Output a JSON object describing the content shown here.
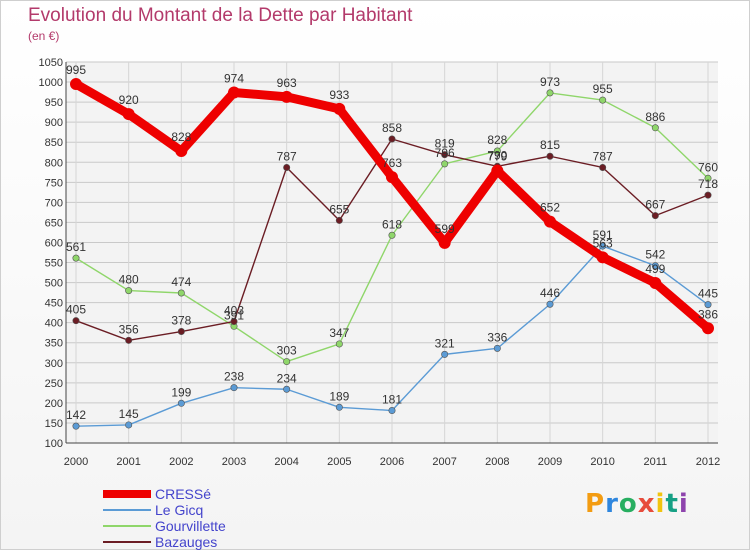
{
  "title": "Evolution du Montant de la Dette par Habitant",
  "subtitle": "(en €)",
  "logo": "Proxiti",
  "chart_data": {
    "type": "line",
    "x": [
      "2000",
      "2001",
      "2002",
      "2003",
      "2004",
      "2005",
      "2006",
      "2007",
      "2008",
      "2009",
      "2010",
      "2011",
      "2012"
    ],
    "ylim": [
      100,
      1050
    ],
    "yticks": [
      100,
      150,
      200,
      250,
      300,
      350,
      400,
      450,
      500,
      550,
      600,
      650,
      700,
      750,
      800,
      850,
      900,
      950,
      1000,
      1050
    ],
    "grid": true,
    "legend_position": "bottom-left",
    "series": [
      {
        "name": "CRESSé",
        "color": "#ee0000",
        "values": [
          995,
          920,
          828,
          974,
          963,
          933,
          763,
          599,
          779,
          652,
          563,
          499,
          386
        ]
      },
      {
        "name": "Le Gicq",
        "color": "#5b9bd5",
        "values": [
          142,
          145,
          199,
          238,
          234,
          189,
          181,
          321,
          336,
          446,
          591,
          542,
          445
        ]
      },
      {
        "name": "Gourvillette",
        "color": "#8fd66a",
        "values": [
          561,
          480,
          474,
          391,
          303,
          347,
          618,
          796,
          828,
          973,
          955,
          886,
          760
        ]
      },
      {
        "name": "Bazauges",
        "color": "#6b1d24",
        "values": [
          405,
          356,
          378,
          403,
          787,
          655,
          858,
          819,
          790,
          815,
          787,
          667,
          718
        ]
      }
    ]
  }
}
